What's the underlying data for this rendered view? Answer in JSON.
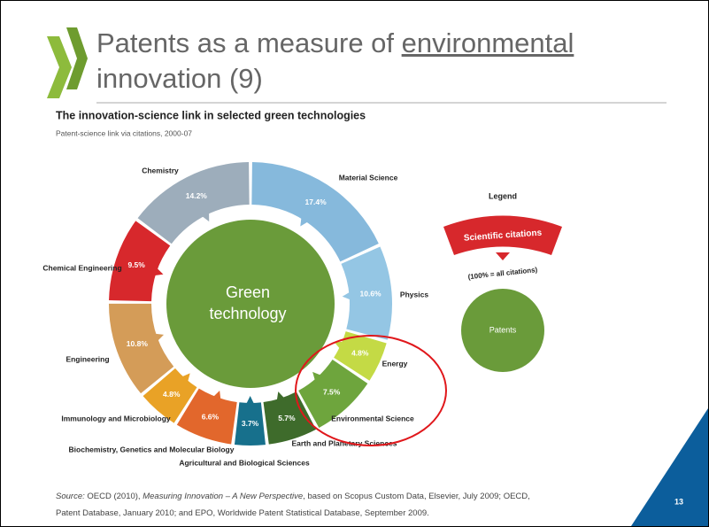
{
  "header": {
    "title_parts": [
      "Patents as a measure of ",
      "environmental",
      " innovation (9)"
    ]
  },
  "chart_data": {
    "type": "donut",
    "title": "The innovation-science link in selected green technologies",
    "subtitle": "Patent-science link via citations, 2000-07",
    "center_label": [
      "Green",
      "technology"
    ],
    "categories": [
      "Material Science",
      "Physics",
      "Energy",
      "Environmental Science",
      "Earth and Planetary Sciences",
      "Agricultural and Biological Sciences",
      "Biochemistry, Genetics and Molecular Biology",
      "Immunology and Microbiology",
      "Engineering",
      "Chemical Engineering",
      "Chemistry"
    ],
    "values": [
      17.4,
      10.6,
      4.8,
      7.5,
      5.7,
      3.7,
      6.6,
      4.8,
      10.8,
      9.5,
      14.2
    ],
    "value_labels": [
      "17.4%",
      "10.6%",
      "4.8%",
      "7.5%",
      "5.7%",
      "3.7%",
      "6.6%",
      "4.8%",
      "10.8%",
      "9.5%",
      "14.2%"
    ],
    "colors": [
      "#86b9dc",
      "#94c6e4",
      "#c4da45",
      "#6ea53d",
      "#3e6b2b",
      "#17708c",
      "#e2672c",
      "#e9a226",
      "#d49c58",
      "#d7282c",
      "#9dadbb"
    ],
    "legend_title": "Legend",
    "legend_citations": "Scientific citations",
    "legend_scale": "(100% = all citations)",
    "legend_patents": "Patents"
  },
  "footer": {
    "source_parts": [
      "Source:",
      " OECD (2010), ",
      "Measuring Innovation – A New Perspective",
      ", based on Scopus Custom Data, Elsevier, July 2009; OECD, Patent Database, January 2010; and EPO, Worldwide Patent Statistical Database, September 2009."
    ],
    "page_number": "13"
  }
}
